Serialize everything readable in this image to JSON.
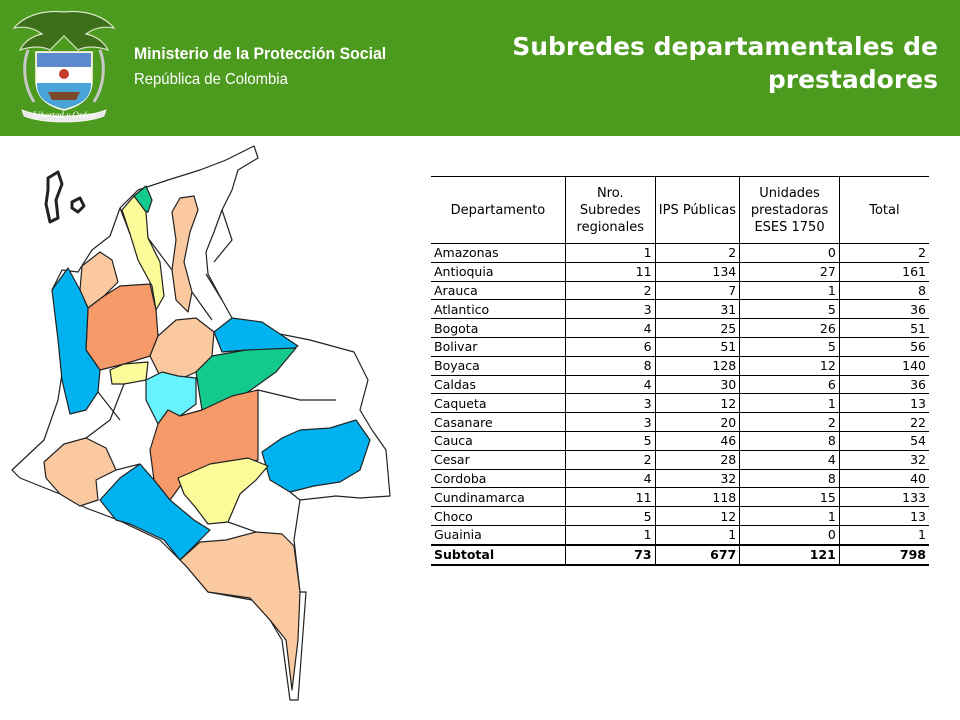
{
  "header": {
    "ministry_name": "Ministerio de la Protección Social",
    "ministry_sub": "República de Colombia",
    "crest_motto": "Libertad y Orden",
    "title": "Subredes departamentales de prestadores",
    "background_color": "#4c9a1e"
  },
  "table": {
    "columns": [
      "Departamento",
      "Nro. Subredes regionales",
      "IPS Públicas",
      "Unidades prestadoras ESES 1750",
      "Total"
    ],
    "rows": [
      [
        "Amazonas",
        "1",
        "2",
        "0",
        "2"
      ],
      [
        "Antioquia",
        "11",
        "134",
        "27",
        "161"
      ],
      [
        "Arauca",
        "2",
        "7",
        "1",
        "8"
      ],
      [
        "Atlantico",
        "3",
        "31",
        "5",
        "36"
      ],
      [
        "Bogota",
        "4",
        "25",
        "26",
        "51"
      ],
      [
        "Bolivar",
        "6",
        "51",
        "5",
        "56"
      ],
      [
        "Boyaca",
        "8",
        "128",
        "12",
        "140"
      ],
      [
        "Caldas",
        "4",
        "30",
        "6",
        "36"
      ],
      [
        "Caqueta",
        "3",
        "12",
        "1",
        "13"
      ],
      [
        "Casanare",
        "3",
        "20",
        "2",
        "22"
      ],
      [
        "Cauca",
        "5",
        "46",
        "8",
        "54"
      ],
      [
        "Cesar",
        "2",
        "28",
        "4",
        "32"
      ],
      [
        "Cordoba",
        "4",
        "32",
        "8",
        "40"
      ],
      [
        "Cundinamarca",
        "11",
        "118",
        "15",
        "133"
      ],
      [
        "Choco",
        "5",
        "12",
        "1",
        "13"
      ],
      [
        "Guainia",
        "1",
        "1",
        "0",
        "1"
      ]
    ],
    "subtotal": [
      "Subtotal",
      "73",
      "677",
      "121",
      "798"
    ]
  },
  "map": {
    "colors": {
      "peach": "#fbc9a0",
      "orange": "#f79a6a",
      "blue": "#00b3f0",
      "cyan": "#66f2ff",
      "teal": "#14c98e",
      "yellow": "#fbfb99",
      "white": "#ffffff"
    }
  }
}
